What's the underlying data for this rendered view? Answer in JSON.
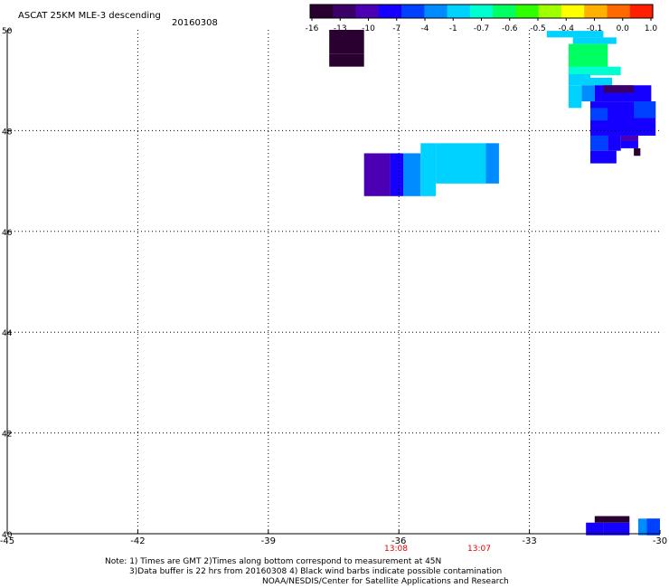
{
  "title": "ASCAT 25KM MLE-3 descending",
  "date": "20160308",
  "colorbar": {
    "labels": [
      "-16",
      "-13",
      "-10",
      "-7",
      "-4",
      "-1",
      "-0.7",
      "-0.6",
      "-0.5",
      "-0.4",
      "-0.1",
      "0.0",
      "1.0"
    ],
    "colors": [
      "#2a0030",
      "#3a0068",
      "#4b00b4",
      "#1500ff",
      "#0040ff",
      "#008cff",
      "#00d2ff",
      "#00ffd0",
      "#00ff60",
      "#30ff00",
      "#a0ff00",
      "#ffff00",
      "#ffb000",
      "#ff6a00",
      "#ff1e00"
    ]
  },
  "axes": {
    "x_ticks": [
      "-45",
      "-42",
      "-39",
      "-36",
      "-33",
      "-30"
    ],
    "y_ticks": [
      "50",
      "48",
      "46",
      "44",
      "42",
      "40"
    ]
  },
  "times": [
    "13:08",
    "13:07"
  ],
  "notes": [
    "Note: 1) Times are GMT 2)Times along bottom correspond to measurement at 45N",
    "3)Data buffer is 22 hrs from 20160308 4) Black wind barbs indicate possible contamination",
    "NOAA/NESDIS/Center for Satellite Applications and Research"
  ],
  "cells": [
    {
      "lon0": -37.6,
      "lon1": -36.8,
      "lat0": 49.27,
      "lat1": 49.52,
      "color": "#2a0030"
    },
    {
      "lon0": -37.6,
      "lon1": -36.8,
      "lat0": 49.52,
      "lat1": 50.0,
      "color": "#2a0030"
    },
    {
      "lon0": -32.6,
      "lon1": -31.3,
      "lat0": 49.85,
      "lat1": 49.98,
      "color": "#00d2ff"
    },
    {
      "lon0": -32.0,
      "lon1": -31.0,
      "lat0": 49.72,
      "lat1": 49.85,
      "color": "#00d2ff"
    },
    {
      "lon0": -32.1,
      "lon1": -31.2,
      "lat0": 49.25,
      "lat1": 49.72,
      "color": "#00ff60"
    },
    {
      "lon0": -32.1,
      "lon1": -30.9,
      "lat0": 49.1,
      "lat1": 49.27,
      "color": "#00ffd0"
    },
    {
      "lon0": -32.1,
      "lon1": -31.6,
      "lat0": 48.9,
      "lat1": 49.12,
      "color": "#00d2ff"
    },
    {
      "lon0": -32.1,
      "lon1": -31.8,
      "lat0": 48.45,
      "lat1": 48.9,
      "color": "#00d2ff"
    },
    {
      "lon0": -31.6,
      "lon1": -31.1,
      "lat0": 48.9,
      "lat1": 49.05,
      "color": "#00d2ff"
    },
    {
      "lon0": -31.8,
      "lon1": -31.5,
      "lat0": 48.58,
      "lat1": 48.9,
      "color": "#008cff"
    },
    {
      "lon0": -31.5,
      "lon1": -30.2,
      "lat0": 48.58,
      "lat1": 48.9,
      "color": "#1500ff"
    },
    {
      "lon0": -31.3,
      "lon1": -30.6,
      "lat0": 48.75,
      "lat1": 48.9,
      "color": "#3a0068"
    },
    {
      "lon0": -31.6,
      "lon1": -30.1,
      "lat0": 47.9,
      "lat1": 48.58,
      "color": "#1500ff"
    },
    {
      "lon0": -31.6,
      "lon1": -31.2,
      "lat0": 48.2,
      "lat1": 48.45,
      "color": "#0040ff"
    },
    {
      "lon0": -30.6,
      "lon1": -30.1,
      "lat0": 48.25,
      "lat1": 48.58,
      "color": "#0040ff"
    },
    {
      "lon0": -31.6,
      "lon1": -31.2,
      "lat0": 47.6,
      "lat1": 47.9,
      "color": "#0040ff"
    },
    {
      "lon0": -31.2,
      "lon1": -30.9,
      "lat0": 47.6,
      "lat1": 47.9,
      "color": "#1500ff"
    },
    {
      "lon0": -30.9,
      "lon1": -30.5,
      "lat0": 47.65,
      "lat1": 47.8,
      "color": "#1500ff"
    },
    {
      "lon0": -30.9,
      "lon1": -30.5,
      "lat0": 47.8,
      "lat1": 47.9,
      "color": "#4b00b4"
    },
    {
      "lon0": -31.6,
      "lon1": -31.0,
      "lat0": 47.35,
      "lat1": 47.6,
      "color": "#1500ff"
    },
    {
      "lon0": -30.6,
      "lon1": -30.45,
      "lat0": 47.5,
      "lat1": 47.65,
      "color": "#2a0030"
    },
    {
      "lon0": -36.8,
      "lon1": -36.2,
      "lat0": 46.7,
      "lat1": 47.55,
      "color": "#4b00b4"
    },
    {
      "lon0": -36.2,
      "lon1": -35.9,
      "lat0": 46.7,
      "lat1": 47.55,
      "color": "#1500ff"
    },
    {
      "lon0": -35.9,
      "lon1": -35.5,
      "lat0": 46.7,
      "lat1": 47.55,
      "color": "#008cff"
    },
    {
      "lon0": -35.5,
      "lon1": -35.15,
      "lat0": 46.7,
      "lat1": 47.75,
      "color": "#00d2ff"
    },
    {
      "lon0": -35.15,
      "lon1": -34.0,
      "lat0": 46.95,
      "lat1": 47.75,
      "color": "#00d2ff"
    },
    {
      "lon0": -34.0,
      "lon1": -33.7,
      "lat0": 46.95,
      "lat1": 47.75,
      "color": "#008cff"
    },
    {
      "lon0": -31.7,
      "lon1": -31.3,
      "lat0": 39.97,
      "lat1": 40.22,
      "color": "#1500ff"
    },
    {
      "lon0": -31.5,
      "lon1": -30.7,
      "lat0": 40.22,
      "lat1": 40.35,
      "color": "#2a0030"
    },
    {
      "lon0": -31.3,
      "lon1": -30.7,
      "lat0": 39.97,
      "lat1": 40.22,
      "color": "#1500ff"
    },
    {
      "lon0": -30.5,
      "lon1": -30.0,
      "lat0": 39.97,
      "lat1": 40.3,
      "color": "#008cff"
    },
    {
      "lon0": -30.3,
      "lon1": -30.0,
      "lat0": 39.97,
      "lat1": 40.3,
      "color": "#0040ff"
    }
  ]
}
